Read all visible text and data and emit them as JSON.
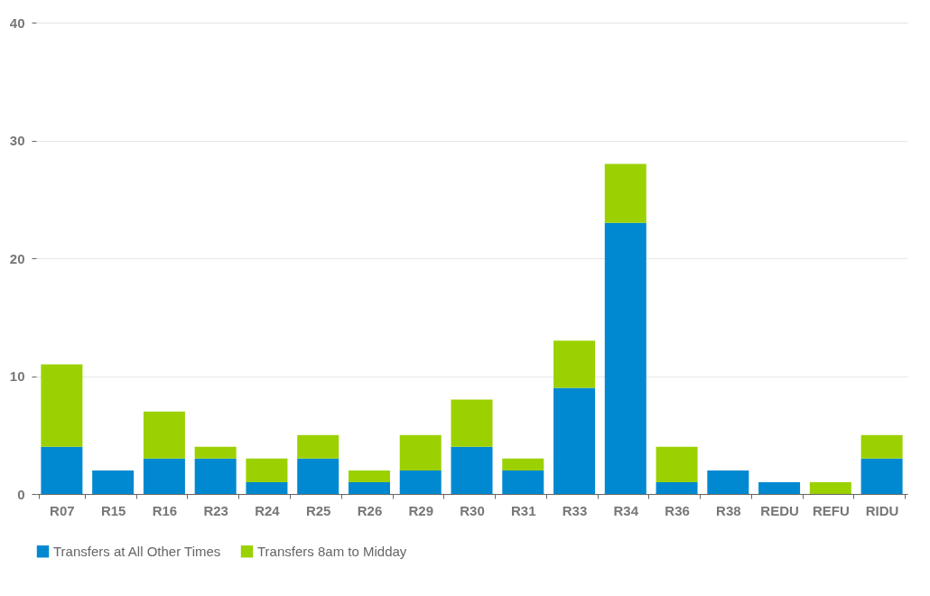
{
  "chart_data": {
    "type": "bar",
    "stacked": true,
    "categories": [
      "R07",
      "R15",
      "R16",
      "R23",
      "R24",
      "R25",
      "R26",
      "R29",
      "R30",
      "R31",
      "R33",
      "R34",
      "R36",
      "R38",
      "REDU",
      "REFU",
      "RIDU"
    ],
    "series": [
      {
        "name": "Transfers at All Other Times",
        "color": "#0089d1",
        "values": [
          4,
          2,
          3,
          3,
          1,
          3,
          1,
          2,
          4,
          2,
          9,
          23,
          1,
          2,
          1,
          0,
          3
        ]
      },
      {
        "name": "Transfers 8am to Midday",
        "color": "#9bd100",
        "values": [
          7,
          0,
          4,
          1,
          2,
          2,
          1,
          3,
          4,
          1,
          4,
          5,
          3,
          0,
          0,
          1,
          2
        ]
      }
    ],
    "ylim": [
      0,
      40
    ],
    "yticks": [
      0,
      10,
      20,
      30,
      40
    ],
    "grid": "y",
    "legend": "bottom"
  }
}
